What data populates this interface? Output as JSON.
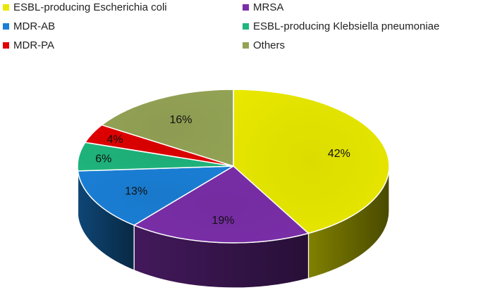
{
  "chart_data": {
    "type": "pie",
    "style": "3d",
    "title": "",
    "legend_position": "top",
    "slices": [
      {
        "name": "ESBL-producing Escherichia coli",
        "value": 42,
        "label": "42%",
        "color": "#e8e800"
      },
      {
        "name": "MRSA",
        "value": 19,
        "label": "19%",
        "color": "#7a2ea8"
      },
      {
        "name": "MDR-AB",
        "value": 13,
        "label": "13%",
        "color": "#1a7fd6"
      },
      {
        "name": "ESBL-producing Klebsiella pneumoniae",
        "value": 6,
        "label": "6%",
        "color": "#1fb57c"
      },
      {
        "name": "MDR-PA",
        "value": 4,
        "label": "4%",
        "color": "#e00000"
      },
      {
        "name": "Others",
        "value": 16,
        "label": "16%",
        "color": "#93a355"
      }
    ]
  }
}
